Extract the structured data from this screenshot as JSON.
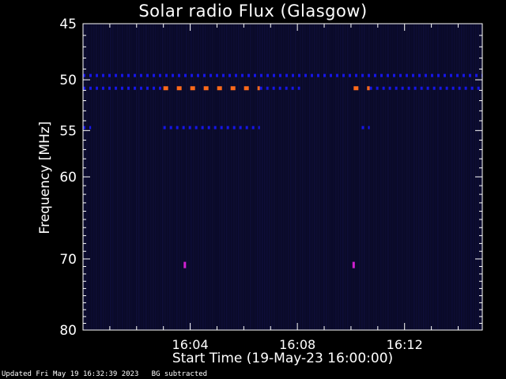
{
  "footer": {
    "updated": "Updated Fri May 19 16:32:39 2023",
    "note": "BG subtracted"
  },
  "chart_data": {
    "type": "heatmap",
    "title": "Solar radio Flux (Glasgow)",
    "xlabel": "Start Time (19-May-23 16:00:00)",
    "ylabel": "Frequency [MHz]",
    "x_unit": "minutes after 16:00:00",
    "xlim": [
      0,
      14.9
    ],
    "ylim": [
      80,
      45
    ],
    "y_scale": "log",
    "y_ticks": [
      45,
      50,
      55,
      60,
      70,
      80
    ],
    "x_ticks": [
      {
        "value": 4,
        "label": "16:04"
      },
      {
        "value": 8,
        "label": "16:08"
      },
      {
        "value": 12,
        "label": "16:12"
      }
    ],
    "colors": {
      "background": "#0a0a28",
      "frame": "#ffffff",
      "low": "#1616e6",
      "high": "#ff6a1a",
      "spike": "#d020d0"
    },
    "bands": [
      {
        "freq": 49.6,
        "start": 0.0,
        "end": 14.9,
        "intensity": "low",
        "style": "dashed"
      },
      {
        "freq": 50.8,
        "start": 0.0,
        "end": 3.0,
        "intensity": "low",
        "style": "dashed"
      },
      {
        "freq": 50.8,
        "start": 3.0,
        "end": 6.6,
        "intensity": "high",
        "style": "dashed"
      },
      {
        "freq": 50.8,
        "start": 6.6,
        "end": 8.1,
        "intensity": "low",
        "style": "dashed"
      },
      {
        "freq": 50.8,
        "start": 10.1,
        "end": 10.7,
        "intensity": "high",
        "style": "dashed"
      },
      {
        "freq": 50.8,
        "start": 10.7,
        "end": 14.9,
        "intensity": "low",
        "style": "dashed"
      },
      {
        "freq": 54.7,
        "start": 3.0,
        "end": 6.6,
        "intensity": "low",
        "style": "dashed"
      },
      {
        "freq": 54.7,
        "start": 10.4,
        "end": 10.7,
        "intensity": "low",
        "style": "dashed"
      },
      {
        "freq": 54.7,
        "start": 0.0,
        "end": 0.3,
        "intensity": "low",
        "style": "dashed"
      }
    ],
    "spikes": [
      {
        "time": 10.1,
        "freq": 70.8
      },
      {
        "time": 3.8,
        "freq": 70.8
      }
    ]
  }
}
